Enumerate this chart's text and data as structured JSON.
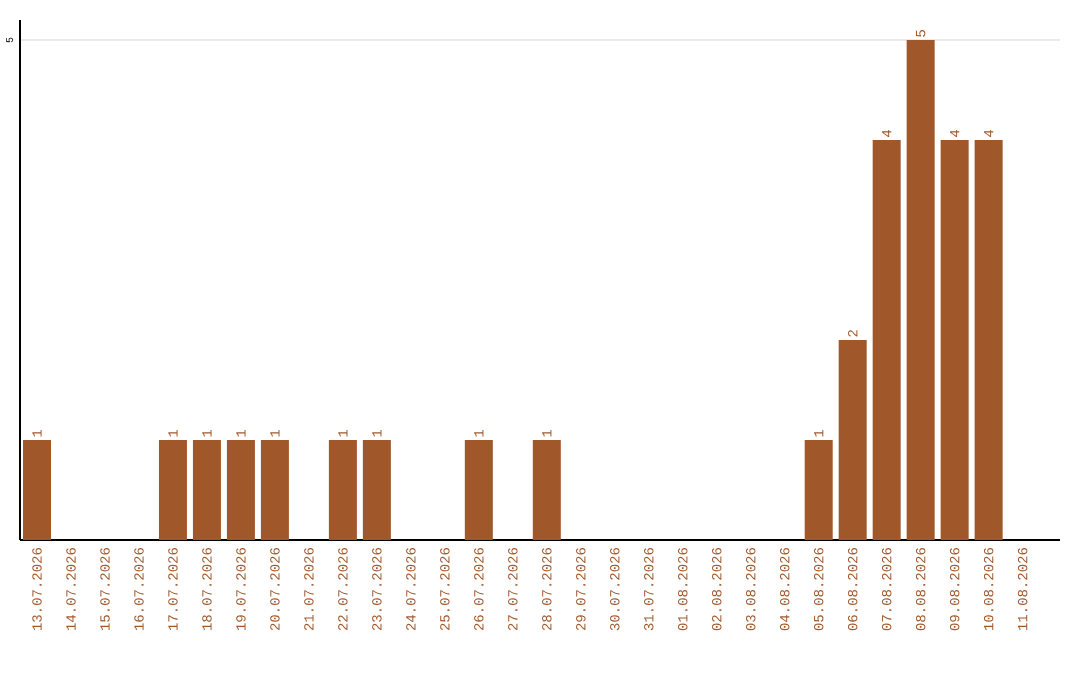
{
  "chart_data": {
    "type": "bar",
    "categories": [
      "13.07.2026",
      "14.07.2026",
      "15.07.2026",
      "16.07.2026",
      "17.07.2026",
      "18.07.2026",
      "19.07.2026",
      "20.07.2026",
      "21.07.2026",
      "22.07.2026",
      "23.07.2026",
      "24.07.2026",
      "25.07.2026",
      "26.07.2026",
      "27.07.2026",
      "28.07.2026",
      "29.07.2026",
      "30.07.2026",
      "31.07.2026",
      "01.08.2026",
      "02.08.2026",
      "03.08.2026",
      "04.08.2026",
      "05.08.2026",
      "06.08.2026",
      "07.08.2026",
      "08.08.2026",
      "09.08.2026",
      "10.08.2026",
      "11.08.2026"
    ],
    "values": [
      1,
      0,
      0,
      0,
      1,
      1,
      1,
      1,
      0,
      1,
      1,
      0,
      0,
      1,
      0,
      1,
      0,
      0,
      0,
      0,
      0,
      0,
      0,
      1,
      2,
      4,
      5,
      4,
      4,
      0
    ],
    "value_labels": [
      "1",
      null,
      null,
      null,
      "1",
      "1",
      "1",
      "1",
      null,
      "1",
      "1",
      null,
      null,
      "1",
      null,
      "1",
      null,
      null,
      null,
      null,
      null,
      null,
      null,
      "1",
      "2",
      "4",
      "5",
      "4",
      "4",
      null
    ],
    "color": "#a0572a",
    "ylim": [
      0,
      5.2
    ],
    "yticks": [
      5
    ],
    "grid": "y"
  }
}
